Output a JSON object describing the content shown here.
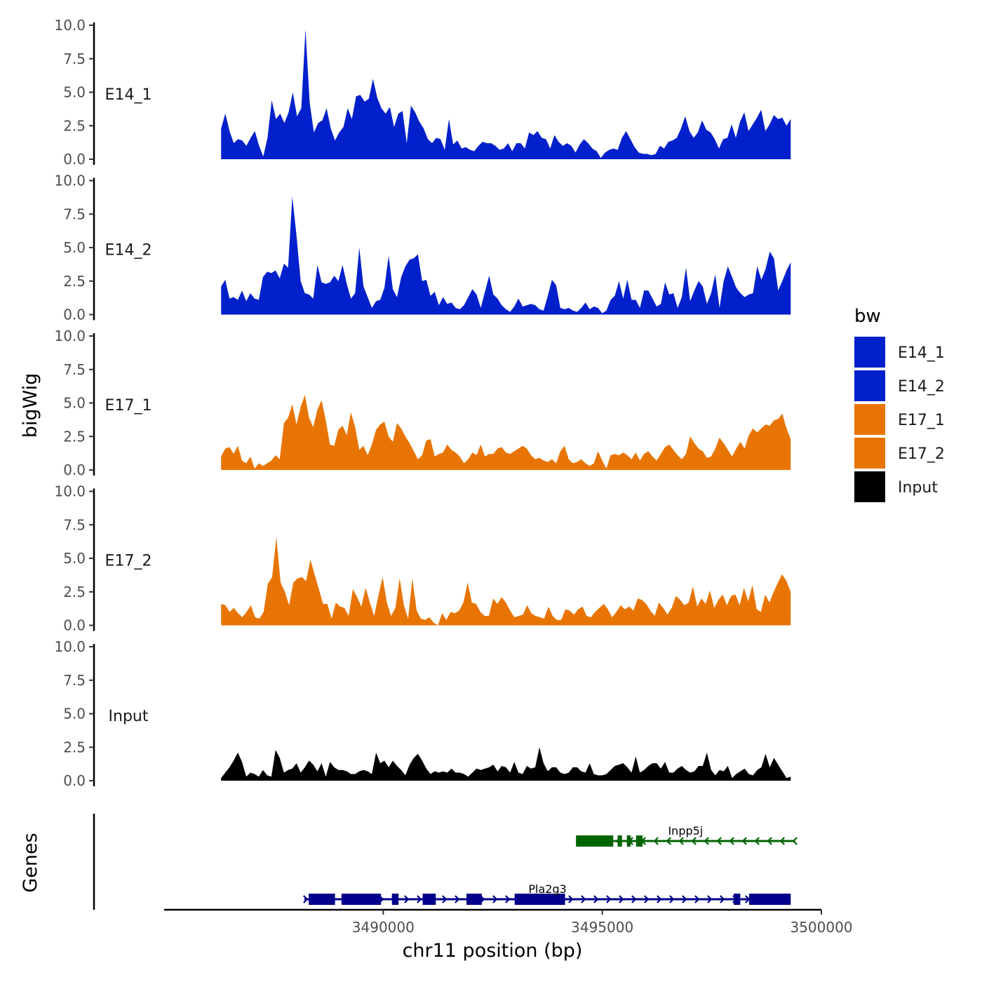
{
  "chart_data": {
    "type": "area",
    "chromosome": "chr11",
    "y_axis_title": "bigWig",
    "genes_axis_title": "Genes",
    "x_axis_title": "chr11 position (bp)",
    "x_range": [
      3485000,
      3500000
    ],
    "x_data_range": [
      3486300,
      3499300
    ],
    "x_ticks": [
      3490000,
      3495000,
      3500000
    ],
    "x_tick_labels": [
      "3490000",
      "3495000",
      "3500000"
    ],
    "y_range": [
      0,
      10
    ],
    "y_ticks": [
      0,
      2.5,
      5,
      7.5,
      10
    ],
    "y_tick_labels": [
      "0.0",
      "2.5",
      "5.0",
      "7.5",
      "10.0"
    ],
    "tracks": [
      {
        "name": "E14_1",
        "color": "#0020CC",
        "values": [
          2.3,
          3.4,
          2.1,
          1.2,
          1.5,
          1.4,
          1.0,
          1.6,
          2.1,
          1.0,
          0.2,
          1.6,
          4.4,
          3.0,
          3.4,
          2.7,
          3.5,
          5.0,
          3.2,
          3.8,
          9.7,
          4.2,
          2.0,
          2.7,
          2.9,
          3.8,
          2.3,
          1.4,
          2.0,
          2.4,
          3.8,
          3.0,
          4.7,
          4.8,
          4.3,
          4.5,
          6.0,
          4.6,
          3.8,
          3.4,
          3.9,
          2.4,
          3.4,
          3.6,
          1.2,
          4.0,
          3.5,
          2.8,
          2.3,
          1.5,
          1.2,
          1.6,
          1.5,
          0.7,
          3.0,
          1.1,
          1.4,
          0.8,
          0.9,
          0.7,
          0.6,
          1.0,
          1.3,
          1.2,
          1.2,
          1.0,
          0.7,
          0.8,
          1.2,
          0.6,
          1.2,
          1.2,
          0.8,
          2.0,
          1.8,
          2.1,
          1.6,
          1.5,
          0.8,
          1.8,
          1.3,
          1.0,
          1.2,
          1.0,
          0.5,
          1.1,
          1.5,
          1.2,
          0.8,
          0.6,
          0.1,
          0.5,
          0.7,
          0.8,
          0.7,
          1.6,
          2.1,
          1.5,
          0.9,
          0.5,
          0.4,
          0.4,
          0.3,
          0.4,
          1.0,
          0.8,
          1.3,
          1.4,
          1.6,
          2.3,
          3.2,
          2.1,
          1.6,
          2.0,
          2.9,
          2.2,
          2.0,
          1.5,
          0.8,
          1.5,
          1.6,
          2.6,
          1.6,
          2.8,
          3.5,
          2.1,
          2.6,
          3.1,
          3.7,
          2.1,
          2.6,
          3.3,
          3.0,
          3.1,
          2.5,
          3.0
        ]
      },
      {
        "name": "E14_2",
        "color": "#0020CC",
        "values": [
          2.1,
          2.6,
          1.2,
          1.3,
          1.1,
          1.8,
          1.0,
          1.6,
          1.2,
          1.1,
          2.8,
          3.2,
          3.1,
          3.3,
          2.7,
          3.8,
          3.5,
          8.8,
          5.9,
          2.5,
          1.6,
          1.5,
          1.2,
          3.7,
          2.4,
          2.3,
          2.4,
          2.9,
          2.5,
          3.7,
          2.3,
          1.2,
          1.6,
          5.0,
          2.1,
          1.3,
          0.5,
          1.0,
          1.1,
          2.0,
          4.4,
          1.9,
          1.3,
          2.8,
          3.6,
          4.1,
          4.2,
          4.5,
          2.5,
          2.6,
          1.4,
          1.7,
          0.7,
          1.3,
          0.8,
          0.9,
          0.5,
          0.4,
          0.7,
          1.3,
          1.9,
          1.5,
          0.5,
          1.7,
          2.9,
          1.5,
          1.2,
          0.7,
          0.4,
          0.2,
          0.6,
          1.2,
          0.6,
          0.7,
          0.8,
          0.7,
          0.4,
          0.3,
          1.4,
          2.6,
          2.2,
          0.5,
          0.4,
          0.5,
          0.3,
          0.2,
          0.5,
          0.9,
          0.4,
          0.6,
          0.5,
          0.1,
          0.3,
          1.1,
          1.4,
          2.5,
          1.2,
          2.6,
          1.1,
          1.1,
          0.5,
          1.8,
          1.8,
          1.2,
          0.6,
          0.8,
          2.4,
          1.5,
          1.6,
          0.5,
          1.3,
          3.5,
          1.0,
          1.8,
          2.5,
          2.1,
          0.8,
          1.6,
          3.0,
          0.5,
          2.5,
          3.6,
          2.8,
          2.0,
          1.6,
          1.3,
          1.5,
          1.6,
          3.6,
          2.6,
          3.4,
          4.7,
          4.2,
          1.8,
          2.5,
          3.3,
          3.9
        ]
      },
      {
        "name": "E17_1",
        "color": "#E87503",
        "values": [
          1.0,
          1.6,
          1.7,
          1.2,
          1.8,
          0.7,
          0.5,
          1.0,
          0.1,
          0.5,
          0.3,
          0.5,
          0.7,
          1.1,
          0.8,
          3.5,
          3.9,
          4.9,
          3.4,
          4.7,
          5.6,
          3.9,
          3.2,
          4.5,
          5.2,
          3.7,
          1.9,
          1.8,
          3.0,
          3.3,
          2.6,
          4.3,
          3.2,
          1.5,
          1.8,
          1.1,
          1.9,
          3.0,
          3.4,
          3.6,
          2.5,
          2.1,
          3.5,
          3.1,
          2.5,
          2.0,
          1.4,
          0.8,
          1.1,
          2.2,
          2.3,
          1.0,
          1.2,
          1.3,
          1.9,
          1.5,
          1.3,
          1.0,
          0.5,
          0.8,
          1.3,
          1.1,
          1.9,
          1.0,
          1.2,
          1.2,
          1.6,
          1.7,
          1.3,
          1.2,
          1.4,
          1.6,
          1.8,
          1.6,
          1.1,
          0.8,
          0.9,
          0.7,
          0.6,
          0.8,
          0.5,
          1.4,
          1.8,
          0.8,
          0.5,
          0.6,
          0.8,
          0.5,
          0.3,
          0.5,
          1.4,
          0.7,
          0.1,
          1.1,
          1.2,
          1.1,
          1.3,
          1.1,
          0.8,
          1.3,
          0.7,
          1.2,
          1.4,
          1.0,
          0.7,
          1.2,
          1.7,
          1.9,
          1.5,
          1.1,
          0.8,
          1.2,
          2.5,
          2.0,
          1.6,
          1.4,
          0.9,
          1.0,
          1.6,
          2.4,
          2.0,
          1.5,
          1.0,
          1.6,
          2.1,
          1.6,
          2.6,
          3.1,
          2.8,
          3.1,
          3.4,
          3.3,
          3.7,
          3.8,
          4.2,
          3.1,
          2.3
        ]
      },
      {
        "name": "E17_2",
        "color": "#E87503",
        "values": [
          1.6,
          1.5,
          1.0,
          1.3,
          0.9,
          0.6,
          1.0,
          1.5,
          0.6,
          0.5,
          1.0,
          3.1,
          3.6,
          6.6,
          3.2,
          2.5,
          1.5,
          3.2,
          3.5,
          3.6,
          3.3,
          4.9,
          3.8,
          2.7,
          1.6,
          1.6,
          0.5,
          1.7,
          1.4,
          1.3,
          0.7,
          2.7,
          2.1,
          1.4,
          2.8,
          1.7,
          0.7,
          2.2,
          3.6,
          1.7,
          0.7,
          1.3,
          3.5,
          1.5,
          0.5,
          3.5,
          1.1,
          0.5,
          0.4,
          0.6,
          0.2,
          0.0,
          0.9,
          0.4,
          1.0,
          0.9,
          1.1,
          1.7,
          3.2,
          1.7,
          1.6,
          1.0,
          0.7,
          0.7,
          2.0,
          1.6,
          2.1,
          1.7,
          1.1,
          0.6,
          0.7,
          0.8,
          1.5,
          0.9,
          0.7,
          0.6,
          0.5,
          1.4,
          0.7,
          0.4,
          0.4,
          1.2,
          1.1,
          0.8,
          1.2,
          1.4,
          0.7,
          0.6,
          1.0,
          1.3,
          1.6,
          1.2,
          0.6,
          1.0,
          1.5,
          1.2,
          1.4,
          1.1,
          2.0,
          1.9,
          1.6,
          1.1,
          0.7,
          1.7,
          1.3,
          0.8,
          1.3,
          2.2,
          1.9,
          1.5,
          1.7,
          2.9,
          1.4,
          2.0,
          1.6,
          2.6,
          1.3,
          1.9,
          2.3,
          1.5,
          2.2,
          2.3,
          1.5,
          2.8,
          1.8,
          3.0,
          1.2,
          1.0,
          2.3,
          1.7,
          2.5,
          3.2,
          3.8,
          3.3,
          2.5
        ]
      },
      {
        "name": "Input",
        "color": "#000000",
        "values": [
          0.2,
          0.6,
          1.0,
          1.5,
          2.1,
          1.4,
          0.3,
          0.6,
          0.5,
          0.3,
          0.8,
          0.4,
          0.3,
          2.3,
          1.7,
          0.6,
          0.8,
          0.9,
          1.3,
          0.6,
          1.0,
          1.5,
          1.2,
          0.7,
          1.3,
          0.3,
          1.4,
          1.0,
          0.8,
          0.8,
          0.7,
          0.5,
          0.5,
          0.7,
          0.8,
          0.7,
          0.5,
          2.1,
          1.3,
          1.5,
          1.0,
          1.5,
          1.1,
          0.8,
          0.4,
          1.2,
          1.7,
          2.0,
          1.5,
          0.9,
          0.5,
          0.7,
          0.6,
          0.7,
          0.6,
          0.9,
          0.6,
          0.6,
          0.5,
          0.3,
          0.6,
          0.9,
          0.8,
          0.9,
          1.0,
          1.2,
          0.7,
          1.1,
          1.0,
          0.6,
          1.4,
          0.6,
          0.5,
          1.1,
          0.9,
          1.0,
          2.5,
          1.3,
          0.7,
          1.0,
          1.0,
          0.6,
          0.5,
          0.6,
          1.0,
          1.0,
          0.7,
          0.6,
          1.3,
          0.5,
          0.4,
          0.4,
          0.5,
          0.8,
          1.1,
          1.2,
          1.3,
          1.0,
          0.6,
          1.8,
          0.6,
          0.8,
          1.1,
          1.3,
          1.3,
          0.9,
          1.4,
          0.6,
          0.6,
          0.9,
          1.1,
          0.8,
          0.6,
          0.7,
          1.1,
          1.1,
          2.1,
          0.8,
          0.4,
          0.8,
          0.7,
          1.1,
          0.2,
          0.5,
          0.7,
          0.9,
          0.5,
          0.4,
          0.8,
          1.0,
          2.0,
          1.0,
          1.7,
          1.2,
          0.7,
          0.2,
          0.3
        ]
      }
    ],
    "legend": {
      "title": "bw",
      "position": "right",
      "items": [
        {
          "label": "E14_1",
          "color": "#0020CC"
        },
        {
          "label": "E14_2",
          "color": "#0020CC"
        },
        {
          "label": "E17_1",
          "color": "#E87503"
        },
        {
          "label": "E17_2",
          "color": "#E87503"
        },
        {
          "label": "Input",
          "color": "#000000"
        }
      ]
    },
    "genes": [
      {
        "name": "Inpp5j",
        "strand": "-",
        "color": "#006400",
        "start": 3494400,
        "end": 3499400,
        "exons": [
          [
            3494400,
            3495250
          ],
          [
            3495350,
            3495450
          ],
          [
            3495560,
            3495650
          ],
          [
            3495770,
            3495920
          ]
        ]
      },
      {
        "name": "Pla2g3",
        "strand": "+",
        "color": "#00008B",
        "start": 3488200,
        "end": 3499300,
        "exons": [
          [
            3488300,
            3488900
          ],
          [
            3489050,
            3489950
          ],
          [
            3490200,
            3490350
          ],
          [
            3490900,
            3491200
          ],
          [
            3491900,
            3492250
          ],
          [
            3493000,
            3494150
          ],
          [
            3498000,
            3498150
          ],
          [
            3498350,
            3499300
          ]
        ]
      }
    ]
  }
}
